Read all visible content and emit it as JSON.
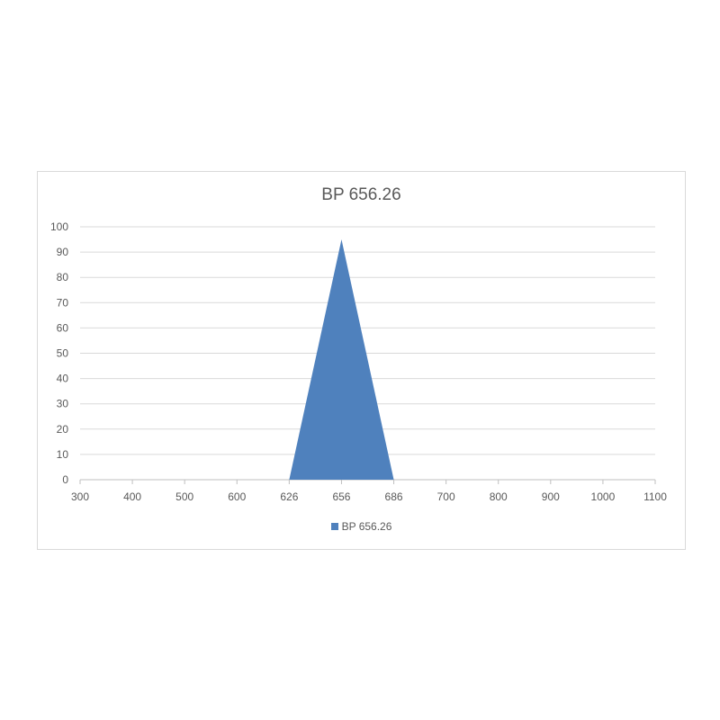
{
  "chart_data": {
    "type": "area",
    "title": "BP 656.26",
    "categories": [
      "300",
      "400",
      "500",
      "600",
      "626",
      "656",
      "686",
      "700",
      "800",
      "900",
      "1000",
      "1100"
    ],
    "series": [
      {
        "name": "BP 656.26",
        "values": [
          0,
          0,
          0,
          0,
          0,
          95,
          0,
          0,
          0,
          0,
          0,
          0
        ],
        "color": "#4f81bd"
      }
    ],
    "ylim": [
      0,
      100
    ],
    "yticks": [
      0,
      10,
      20,
      30,
      40,
      50,
      60,
      70,
      80,
      90,
      100
    ],
    "grid": true,
    "legend": "bottom"
  }
}
